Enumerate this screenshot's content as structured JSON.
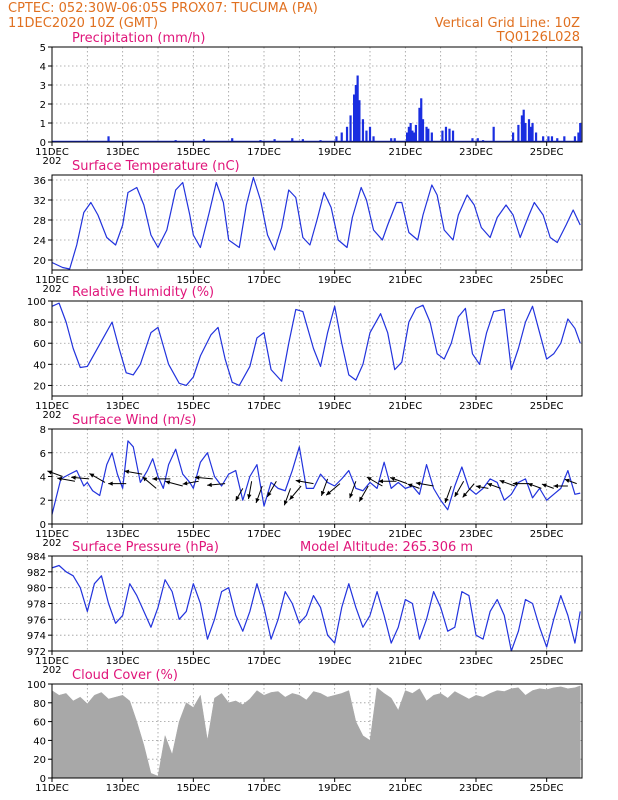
{
  "header": {
    "line1": "CPTEC:   052:30W-06:05S   PROX07: TUCUMA (PA)",
    "line2": "11DEC2020 10Z (GMT)",
    "grid_note": "Vertical Grid Line: 10Z",
    "code": "TQ0126L028"
  },
  "colors": {
    "header": "#e07020",
    "panel_title": "#e0157a",
    "line": "#2233dd",
    "bar": "#1a2ee0",
    "cloud": "#a8a8a8",
    "arrow": "#000000",
    "grid": "#9a9a9a"
  },
  "x_axis": {
    "start_day": 11,
    "end_day": 26,
    "ticks": [
      {
        "label": "11DEC",
        "day": 11
      },
      {
        "label": "13DEC",
        "day": 13
      },
      {
        "label": "15DEC",
        "day": 15
      },
      {
        "label": "17DEC",
        "day": 17
      },
      {
        "label": "19DEC",
        "day": 19
      },
      {
        "label": "21DEC",
        "day": 21
      },
      {
        "label": "23DEC",
        "day": 23
      },
      {
        "label": "25DEC",
        "day": 25
      }
    ],
    "year_stub": "202"
  },
  "chart_data": [
    {
      "type": "bar",
      "title": "Precipitation (mm/h)",
      "ylim": [
        0,
        5
      ],
      "yticks": [
        0,
        1,
        2,
        3,
        4,
        5
      ],
      "x": [
        12.6,
        14.5,
        15.3,
        16.1,
        16.9,
        17.3,
        17.8,
        18.1,
        18.6,
        19.05,
        19.2,
        19.35,
        19.45,
        19.55,
        19.6,
        19.65,
        19.7,
        19.8,
        19.9,
        20.0,
        20.1,
        20.6,
        20.7,
        21.05,
        21.1,
        21.15,
        21.2,
        21.25,
        21.3,
        21.4,
        21.45,
        21.5,
        21.6,
        21.65,
        21.75,
        22.05,
        22.15,
        22.25,
        22.35,
        22.9,
        23.05,
        23.2,
        23.5,
        24.05,
        24.2,
        24.3,
        24.35,
        24.4,
        24.5,
        24.55,
        24.6,
        24.7,
        24.9,
        25.05,
        25.15,
        25.3,
        25.5,
        25.8,
        25.9,
        25.95
      ],
      "values": [
        0.3,
        0.1,
        0.15,
        0.2,
        0.1,
        0.15,
        0.2,
        0.15,
        0.1,
        0.3,
        0.5,
        0.8,
        1.4,
        2.5,
        3.0,
        3.5,
        2.2,
        1.2,
        0.6,
        0.8,
        0.3,
        0.2,
        0.2,
        0.5,
        0.8,
        1.0,
        0.6,
        0.5,
        0.9,
        1.8,
        2.3,
        1.2,
        0.8,
        0.7,
        0.5,
        0.6,
        0.8,
        0.7,
        0.6,
        0.2,
        0.2,
        0.1,
        0.8,
        0.5,
        0.9,
        1.4,
        1.7,
        1.0,
        1.2,
        0.8,
        1.0,
        0.5,
        0.3,
        0.3,
        0.3,
        0.2,
        0.3,
        0.3,
        0.5,
        1.0
      ]
    },
    {
      "type": "line",
      "title": "Surface Temperature (nC)",
      "ylim": [
        18,
        37
      ],
      "yticks": [
        20,
        24,
        28,
        32,
        36
      ],
      "x": [
        11.0,
        11.15,
        11.3,
        11.5,
        11.7,
        11.9,
        12.1,
        12.3,
        12.55,
        12.8,
        13.0,
        13.15,
        13.4,
        13.6,
        13.8,
        14.0,
        14.25,
        14.5,
        14.7,
        14.9,
        15.0,
        15.2,
        15.45,
        15.65,
        15.85,
        16.0,
        16.3,
        16.5,
        16.7,
        16.9,
        17.1,
        17.3,
        17.5,
        17.7,
        17.9,
        18.1,
        18.3,
        18.5,
        18.7,
        18.9,
        19.1,
        19.35,
        19.5,
        19.75,
        19.9,
        20.1,
        20.35,
        20.5,
        20.75,
        20.9,
        21.1,
        21.35,
        21.5,
        21.75,
        21.9,
        22.1,
        22.35,
        22.5,
        22.75,
        22.95,
        23.15,
        23.4,
        23.6,
        23.85,
        24.05,
        24.25,
        24.5,
        24.65,
        24.9,
        25.1,
        25.3,
        25.55,
        25.75,
        25.95
      ],
      "values": [
        19.5,
        19.0,
        18.5,
        18.2,
        23,
        29.5,
        31.5,
        29,
        24.5,
        23,
        27,
        33.5,
        34.5,
        31,
        25,
        22.5,
        26,
        34,
        35.5,
        29,
        25,
        22.5,
        29.5,
        35.5,
        31.5,
        24,
        22.5,
        31,
        36.5,
        32,
        25,
        22,
        26.5,
        34,
        32.5,
        24.5,
        23,
        28,
        33.5,
        30.5,
        24,
        22.5,
        28.5,
        34.5,
        32,
        26,
        24,
        27,
        31.5,
        31.5,
        25.5,
        24,
        29,
        35,
        33,
        26,
        24,
        29,
        33,
        31,
        26.5,
        24.5,
        28.5,
        31,
        29,
        24.5,
        29,
        31.5,
        29,
        24.5,
        23.5,
        27,
        30,
        27
      ]
    },
    {
      "type": "line",
      "title": "Relative Humidity (%)",
      "ylim": [
        10,
        100
      ],
      "yticks": [
        20,
        40,
        60,
        80,
        100
      ],
      "x": [
        11.0,
        11.2,
        11.4,
        11.6,
        11.8,
        12.0,
        12.2,
        12.5,
        12.7,
        12.9,
        13.1,
        13.3,
        13.5,
        13.8,
        14.0,
        14.3,
        14.6,
        14.8,
        15.0,
        15.2,
        15.5,
        15.7,
        15.9,
        16.1,
        16.3,
        16.6,
        16.8,
        17.0,
        17.2,
        17.5,
        17.7,
        17.9,
        18.1,
        18.4,
        18.6,
        18.8,
        19.0,
        19.2,
        19.4,
        19.6,
        19.8,
        20.0,
        20.3,
        20.5,
        20.7,
        20.9,
        21.1,
        21.3,
        21.5,
        21.7,
        21.9,
        22.1,
        22.3,
        22.5,
        22.7,
        22.9,
        23.1,
        23.3,
        23.5,
        23.8,
        24.0,
        24.2,
        24.4,
        24.6,
        24.8,
        25.0,
        25.2,
        25.4,
        25.6,
        25.8,
        25.95
      ],
      "values": [
        95,
        98,
        80,
        55,
        37,
        38,
        50,
        68,
        80,
        55,
        32,
        30,
        40,
        70,
        75,
        40,
        22,
        20,
        28,
        48,
        68,
        75,
        45,
        23,
        20,
        38,
        65,
        70,
        35,
        24,
        60,
        92,
        90,
        55,
        38,
        70,
        95,
        60,
        30,
        25,
        40,
        70,
        88,
        70,
        35,
        42,
        80,
        93,
        96,
        80,
        50,
        45,
        60,
        85,
        93,
        50,
        40,
        70,
        90,
        92,
        35,
        55,
        80,
        95,
        70,
        45,
        50,
        60,
        83,
        74,
        60
      ]
    },
    {
      "type": "line",
      "title": "Surface Wind (m/s)",
      "ylim": [
        0,
        8
      ],
      "yticks": [
        0,
        2,
        4,
        6,
        8
      ],
      "x": [
        11.0,
        11.1,
        11.25,
        11.5,
        11.7,
        11.9,
        12.0,
        12.15,
        12.35,
        12.55,
        12.7,
        12.85,
        13.0,
        13.15,
        13.3,
        13.5,
        13.7,
        13.85,
        14.0,
        14.15,
        14.3,
        14.5,
        14.7,
        14.9,
        15.0,
        15.2,
        15.4,
        15.6,
        15.8,
        16.0,
        16.2,
        16.4,
        16.6,
        16.8,
        17.0,
        17.2,
        17.4,
        17.6,
        17.8,
        18.0,
        18.2,
        18.4,
        18.6,
        18.8,
        19.0,
        19.2,
        19.4,
        19.6,
        19.8,
        20.0,
        20.2,
        20.4,
        20.6,
        20.8,
        21.0,
        21.2,
        21.4,
        21.6,
        21.8,
        22.0,
        22.2,
        22.4,
        22.6,
        22.8,
        23.0,
        23.2,
        23.4,
        23.6,
        23.8,
        24.0,
        24.2,
        24.4,
        24.6,
        24.8,
        25.0,
        25.2,
        25.4,
        25.6,
        25.8,
        25.95
      ],
      "values": [
        0.8,
        2.0,
        3.8,
        4.2,
        4.5,
        3.2,
        3.5,
        2.8,
        2.4,
        5.0,
        6.0,
        4.2,
        3.0,
        7.0,
        6.5,
        3.5,
        4.5,
        5.5,
        4.0,
        3.0,
        5.0,
        6.3,
        4.2,
        3.5,
        3.0,
        5.2,
        6.0,
        4.0,
        3.2,
        4.2,
        4.5,
        2.0,
        4.0,
        5.0,
        1.5,
        3.5,
        3.0,
        2.8,
        4.5,
        6.5,
        3.0,
        3.0,
        4.2,
        3.5,
        3.2,
        3.8,
        4.5,
        3.0,
        2.8,
        3.5,
        3.0,
        5.2,
        3.0,
        3.5,
        3.0,
        3.2,
        2.5,
        5.0,
        3.0,
        2.0,
        1.2,
        3.2,
        4.8,
        3.0,
        2.5,
        3.0,
        3.8,
        3.5,
        2.0,
        2.5,
        3.5,
        3.8,
        2.2,
        3.0,
        2.0,
        2.5,
        3.0,
        4.5,
        2.5,
        2.6
      ]
    },
    {
      "type": "line",
      "title": "Surface Pressure (hPa)",
      "annotation": "Model Altitude: 265.306 m",
      "ylim": [
        972,
        984
      ],
      "yticks": [
        972,
        974,
        976,
        978,
        980,
        982,
        984
      ],
      "x": [
        11.0,
        11.2,
        11.4,
        11.6,
        11.8,
        12.0,
        12.2,
        12.4,
        12.6,
        12.8,
        13.0,
        13.2,
        13.4,
        13.6,
        13.8,
        14.0,
        14.2,
        14.4,
        14.6,
        14.8,
        15.0,
        15.2,
        15.4,
        15.6,
        15.8,
        16.0,
        16.2,
        16.4,
        16.6,
        16.8,
        17.0,
        17.2,
        17.4,
        17.6,
        17.8,
        18.0,
        18.2,
        18.4,
        18.6,
        18.8,
        19.0,
        19.2,
        19.4,
        19.6,
        19.8,
        20.0,
        20.2,
        20.4,
        20.6,
        20.8,
        21.0,
        21.2,
        21.4,
        21.6,
        21.8,
        22.0,
        22.2,
        22.4,
        22.6,
        22.8,
        23.0,
        23.2,
        23.4,
        23.6,
        23.8,
        24.0,
        24.2,
        24.4,
        24.6,
        24.8,
        25.0,
        25.2,
        25.4,
        25.6,
        25.8,
        25.95
      ],
      "values": [
        982.5,
        982.8,
        982.0,
        981.5,
        980.0,
        977.0,
        980.5,
        981.5,
        978.0,
        975.5,
        976.5,
        980.5,
        979.0,
        977.0,
        975.0,
        977.5,
        981.0,
        979.5,
        976.0,
        977.0,
        980.5,
        978.0,
        973.5,
        976.0,
        979.5,
        980.0,
        976.5,
        974.5,
        977.0,
        980.5,
        977.5,
        973.5,
        976.0,
        979.5,
        978.0,
        975.5,
        976.5,
        979.0,
        977.5,
        974.0,
        973.0,
        977.5,
        980.5,
        977.5,
        975.0,
        976.5,
        979.5,
        976.5,
        973.0,
        975.0,
        978.5,
        978.0,
        973.5,
        976.0,
        979.5,
        977.5,
        974.5,
        975.0,
        979.5,
        979.0,
        974.0,
        973.5,
        977.0,
        978.5,
        976.5,
        972.0,
        974.5,
        978.5,
        978.0,
        975.0,
        972.5,
        976.0,
        979.0,
        976.5,
        973.0,
        977.0
      ]
    },
    {
      "type": "area",
      "title": "Cloud Cover (%)",
      "ylim": [
        0,
        100
      ],
      "yticks": [
        0,
        20,
        40,
        60,
        80,
        100
      ],
      "x": [
        11.0,
        11.2,
        11.4,
        11.6,
        11.8,
        12.0,
        12.2,
        12.4,
        12.6,
        12.8,
        13.0,
        13.2,
        13.4,
        13.6,
        13.8,
        14.0,
        14.2,
        14.4,
        14.6,
        14.8,
        15.0,
        15.2,
        15.4,
        15.6,
        15.8,
        16.0,
        16.2,
        16.4,
        16.6,
        16.8,
        17.0,
        17.2,
        17.4,
        17.6,
        17.8,
        18.0,
        18.2,
        18.4,
        18.6,
        18.8,
        19.0,
        19.2,
        19.4,
        19.6,
        19.8,
        20.0,
        20.2,
        20.4,
        20.6,
        20.8,
        21.0,
        21.2,
        21.4,
        21.6,
        21.8,
        22.0,
        22.2,
        22.4,
        22.6,
        22.8,
        23.0,
        23.2,
        23.4,
        23.6,
        23.8,
        24.0,
        24.2,
        24.4,
        24.6,
        24.8,
        25.0,
        25.2,
        25.4,
        25.6,
        25.8,
        25.95
      ],
      "values": [
        93,
        88,
        90,
        82,
        86,
        79,
        88,
        91,
        84,
        86,
        88,
        82,
        60,
        35,
        5,
        2,
        45,
        25,
        60,
        80,
        75,
        88,
        40,
        85,
        90,
        80,
        82,
        78,
        84,
        93,
        88,
        91,
        92,
        86,
        90,
        88,
        83,
        92,
        90,
        86,
        88,
        90,
        93,
        60,
        45,
        40,
        96,
        90,
        85,
        72,
        93,
        90,
        95,
        82,
        88,
        90,
        85,
        92,
        88,
        84,
        88,
        86,
        90,
        93,
        92,
        95,
        96,
        88,
        93,
        95,
        94,
        96,
        97,
        95,
        96,
        98
      ]
    }
  ],
  "wind_arrows": {
    "x": [
      11.3,
      11.65,
      12.05,
      12.5,
      13.1,
      13.55,
      13.95,
      14.35,
      14.7,
      15.15,
      15.55,
      15.9,
      16.4,
      16.65,
      16.95,
      17.35,
      17.75,
      18.05,
      18.4,
      18.8,
      19.15,
      19.6,
      19.95,
      20.35,
      20.75,
      21.05,
      21.4,
      21.8,
      22.3,
      22.65,
      22.95,
      23.35,
      23.7,
      24.1,
      24.5,
      24.85,
      25.2,
      25.6,
      25.85
    ],
    "speed": [
      4.0,
      3.6,
      3.8,
      3.5,
      3.4,
      4.2,
      3.0,
      3.8,
      3.2,
      3.6,
      3.8,
      3.4,
      3.0,
      3.6,
      3.2,
      3.6,
      3.0,
      3.2,
      3.4,
      3.8,
      3.4,
      3.6,
      3.2,
      3.2,
      3.6,
      3.4,
      3.0,
      3.2,
      3.2,
      3.6,
      3.4,
      3.0,
      3.0,
      3.2,
      3.4,
      3.0,
      3.0,
      3.2,
      3.4
    ],
    "length": [
      0.9,
      1.0,
      1.0,
      1.0,
      1.0,
      1.0,
      1.0,
      1.0,
      1.0,
      0.9,
      1.0,
      1.0,
      0.8,
      1.0,
      1.0,
      1.0,
      1.0,
      1.0,
      1.0,
      1.0,
      1.0,
      1.0,
      1.0,
      1.0,
      1.0,
      1.0,
      0.7,
      1.0,
      1.0,
      1.0,
      1.0,
      0.7,
      0.8,
      0.9,
      0.9,
      0.8,
      0.7,
      0.8,
      0.7
    ],
    "angle_deg": [
      200,
      190,
      185,
      210,
      180,
      190,
      220,
      180,
      195,
      170,
      185,
      175,
      120,
      100,
      110,
      120,
      110,
      130,
      190,
      110,
      140,
      110,
      120,
      210,
      180,
      200,
      200,
      190,
      110,
      120,
      130,
      190,
      200,
      200,
      180,
      200,
      200,
      180,
      200
    ]
  }
}
